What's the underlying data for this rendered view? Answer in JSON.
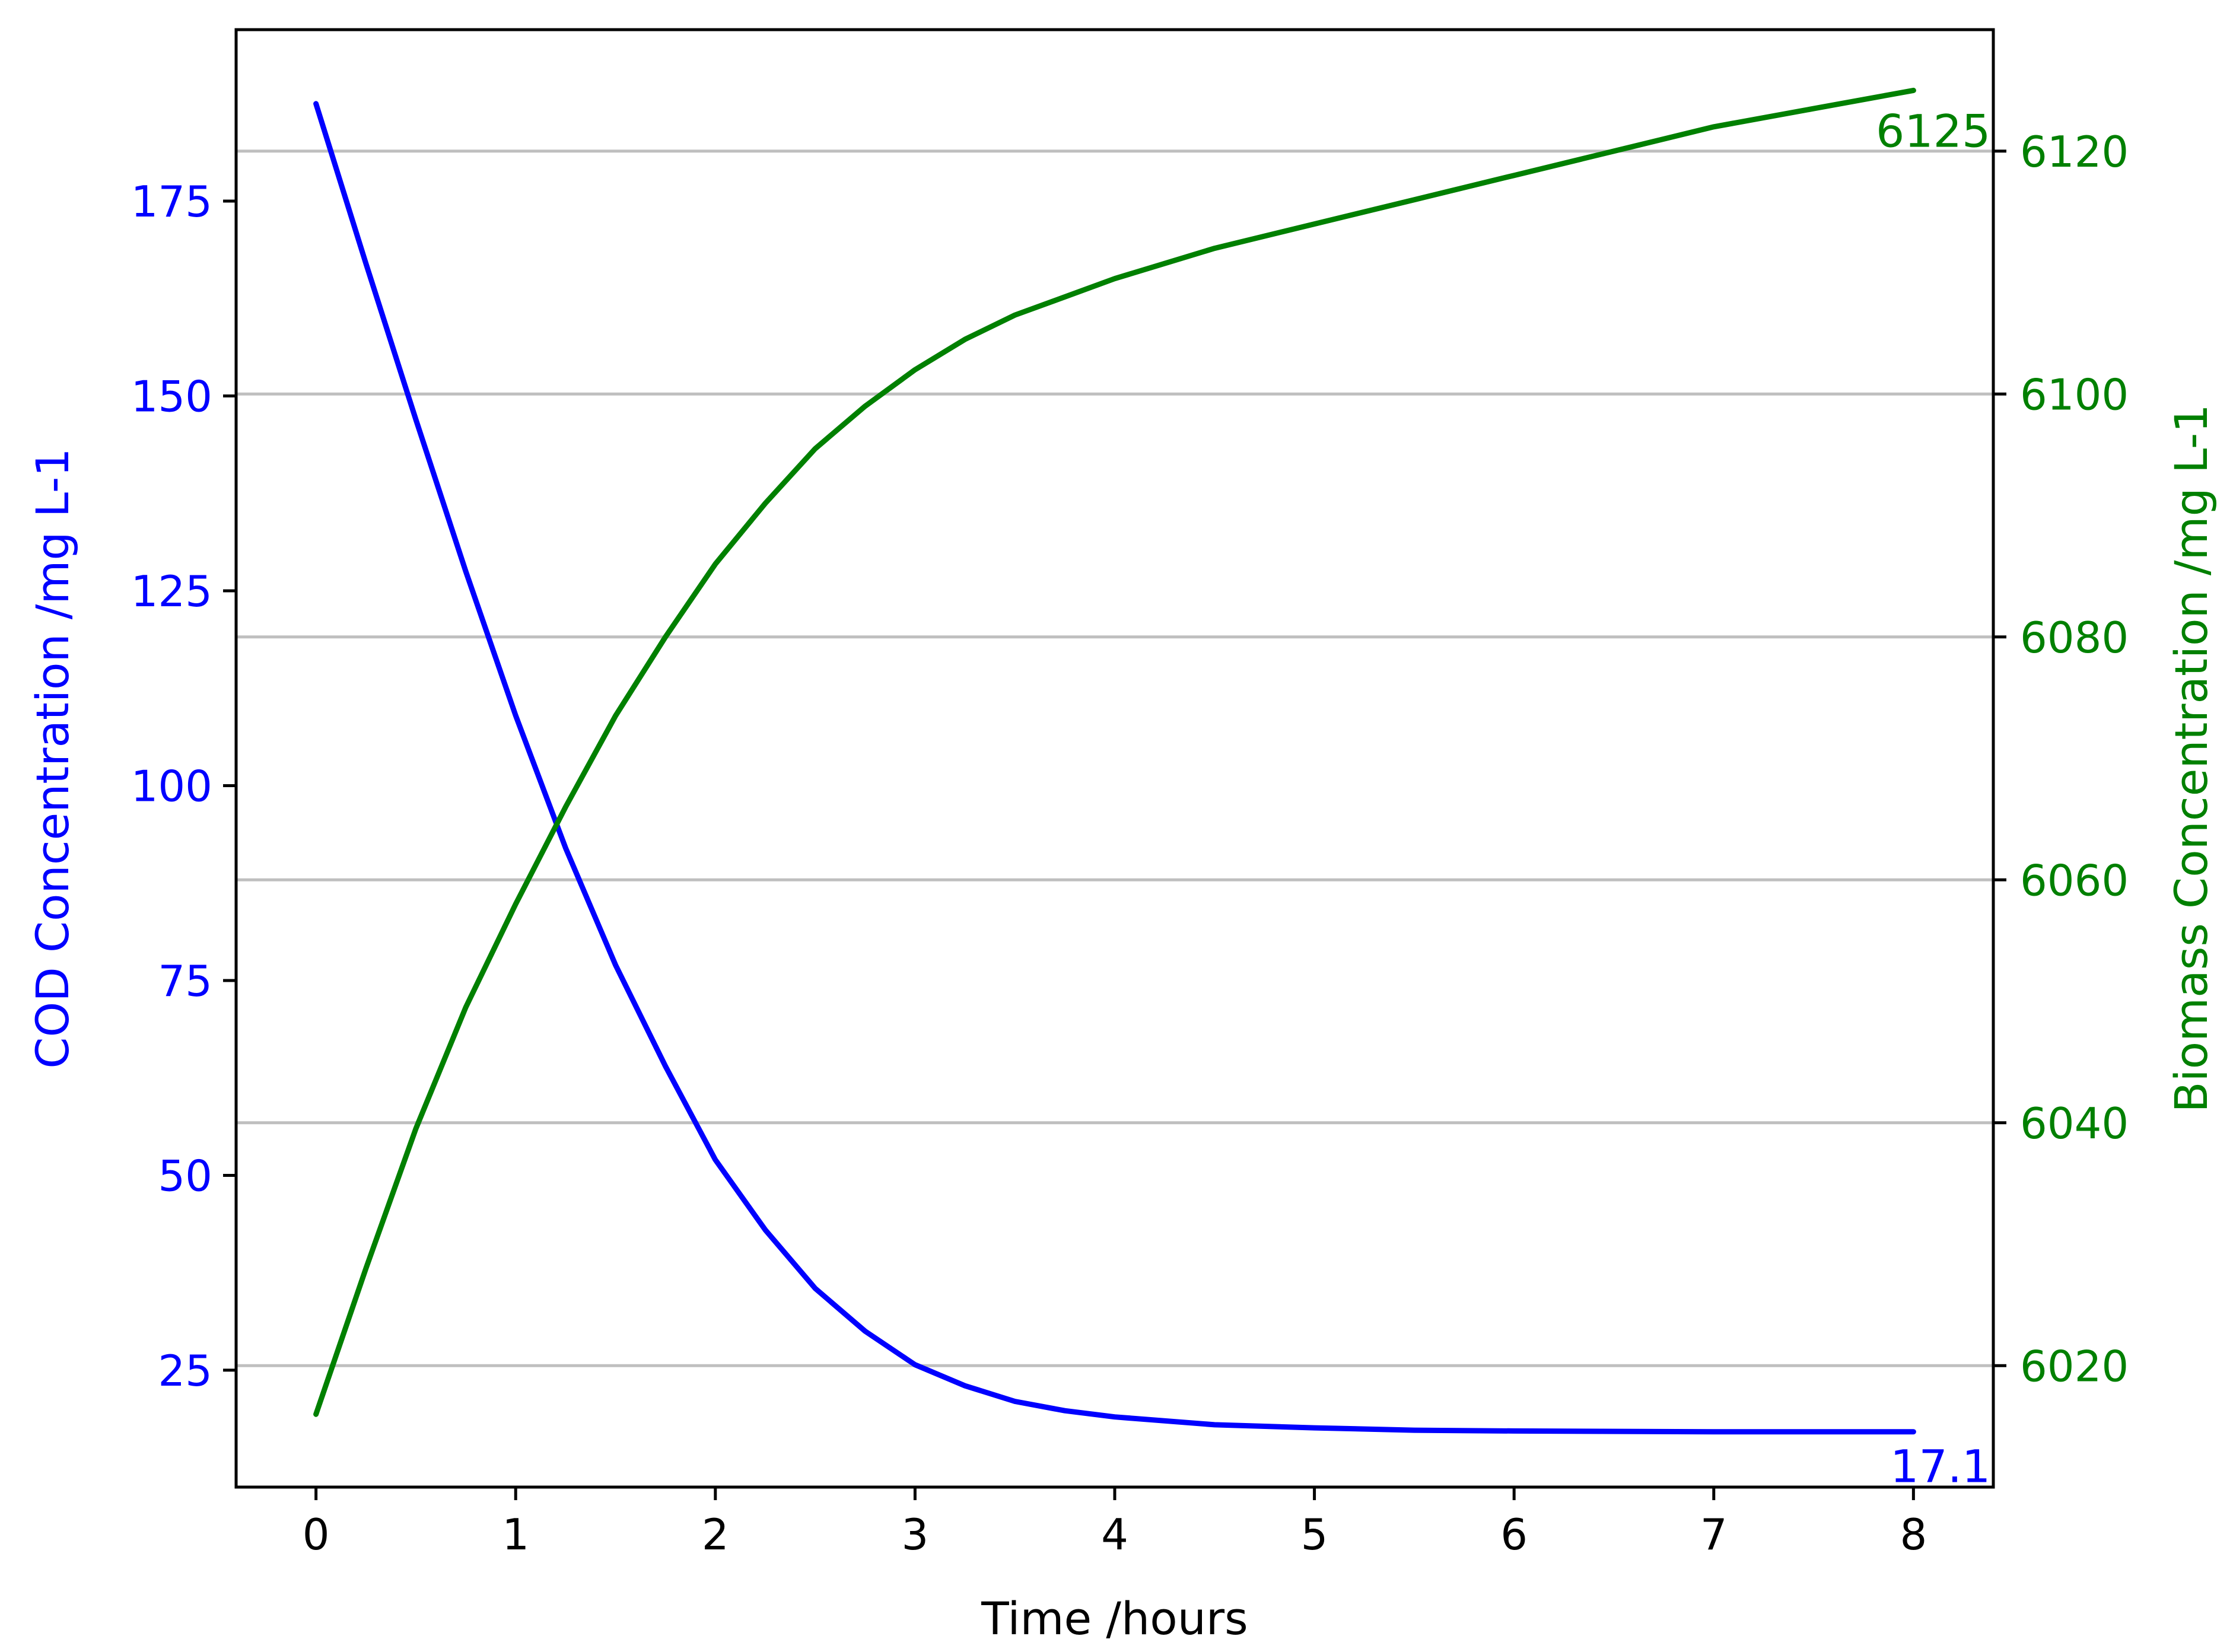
{
  "chart_data": {
    "type": "line",
    "title": "",
    "xlabel": "Time /hours",
    "ylabel_left": "COD Concentration /mg L-1",
    "ylabel_right": "Biomass Concentration /mg L-1",
    "xlim": [
      -0.4,
      8.4
    ],
    "ylim_left": [
      10.0,
      197.0
    ],
    "ylim_right": [
      6010.0,
      6130.0
    ],
    "x_ticks": [
      0,
      1,
      2,
      3,
      4,
      5,
      6,
      7,
      8
    ],
    "y_left_ticks": [
      25,
      50,
      75,
      100,
      125,
      150,
      175
    ],
    "y_right_ticks": [
      6020,
      6040,
      6060,
      6080,
      6100,
      6120
    ],
    "grid": "horizontal, right axis ticks",
    "legend": "none",
    "colors": {
      "cod": "#0000ff",
      "biomass": "#008000",
      "axis": "#000000",
      "grid": "#bfbfbf"
    },
    "series": [
      {
        "axis": "left",
        "color": "#0000ff",
        "x": [
          0,
          0.25,
          0.5,
          0.75,
          1.0,
          1.25,
          1.5,
          1.75,
          2.0,
          2.25,
          2.5,
          2.75,
          3.0,
          3.25,
          3.5,
          3.75,
          4.0,
          4.5,
          5.0,
          5.5,
          6.0,
          7.0,
          8.0
        ],
        "values": [
          187.5,
          167.0,
          147.0,
          127.5,
          109.0,
          92.0,
          77.0,
          64.0,
          52.0,
          43.0,
          35.5,
          30.0,
          25.7,
          23.0,
          21.0,
          19.8,
          19.0,
          18.0,
          17.6,
          17.3,
          17.2,
          17.1,
          17.1
        ]
      },
      {
        "axis": "right",
        "color": "#008000",
        "x": [
          0,
          0.25,
          0.5,
          0.75,
          1.0,
          1.25,
          1.5,
          1.75,
          2.0,
          2.25,
          2.5,
          2.75,
          3.0,
          3.25,
          3.5,
          3.75,
          4.0,
          4.5,
          5.0,
          5.5,
          6.0,
          6.5,
          7.0,
          7.5,
          8.0
        ],
        "values": [
          6016,
          6028,
          6039.5,
          6049.5,
          6058,
          6066,
          6073.5,
          6080,
          6086,
          6091,
          6095.5,
          6099,
          6102,
          6104.5,
          6106.5,
          6108,
          6109.5,
          6112,
          6114,
          6116,
          6118,
          6120,
          6122,
          6123.5,
          6125
        ]
      }
    ],
    "annotations": [
      {
        "text": "6125",
        "x": 8,
        "y": 6125,
        "axis": "right",
        "color": "#008000"
      },
      {
        "text": "17.1",
        "x": 8,
        "y": 17.1,
        "axis": "left",
        "color": "#0000ff"
      }
    ]
  }
}
